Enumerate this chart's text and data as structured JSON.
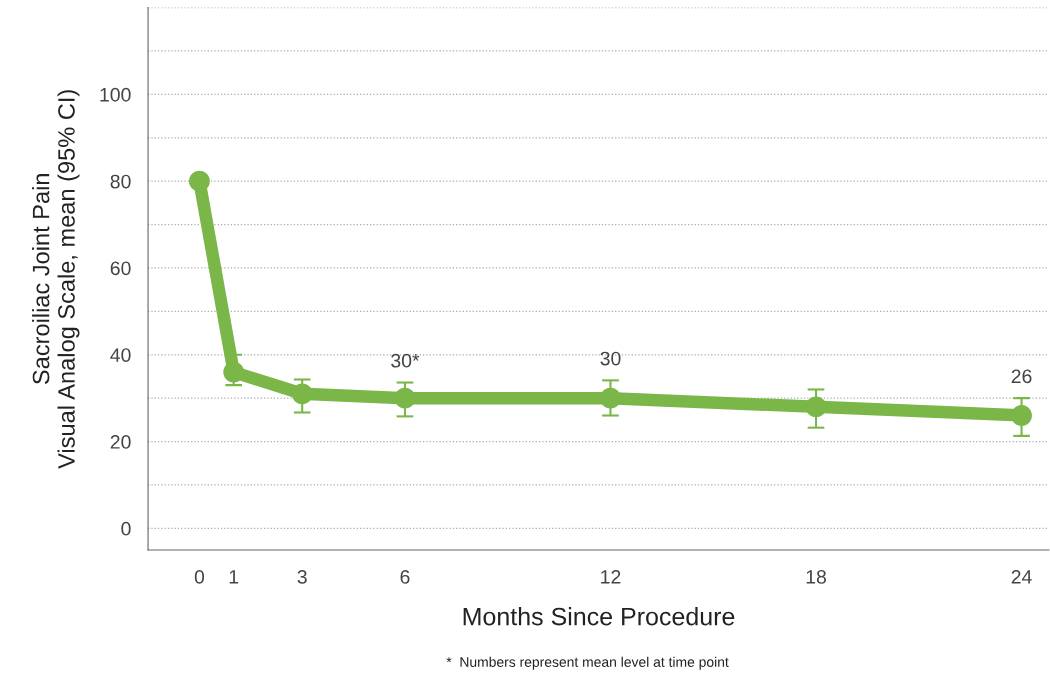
{
  "chart_data": {
    "type": "line",
    "xlabel": "Months Since Procedure",
    "ylabel": "Sacroiliac Joint Pain\nVisual Analog Scale, mean (95% CI)",
    "x": [
      0,
      1,
      3,
      6,
      12,
      18,
      24
    ],
    "series": [
      {
        "color": "#7ab648",
        "values": [
          80,
          36,
          31,
          30,
          30,
          28,
          26
        ],
        "errors": [
          null,
          [
            33,
            40
          ],
          [
            26.7,
            34.3
          ],
          [
            25.8,
            33.6
          ],
          [
            26,
            34.1
          ],
          [
            23.2,
            32
          ],
          [
            21.3,
            30
          ]
        ],
        "value_labels": [
          null,
          null,
          null,
          "30*",
          "30",
          null,
          "26"
        ]
      }
    ],
    "xlim": [
      -1.5,
      24.8
    ],
    "xticks": [
      0,
      1,
      3,
      6,
      12,
      18,
      24
    ],
    "ylim": [
      -5,
      120
    ],
    "yticks": [
      0,
      {
        "value": 10,
        "label": null
      },
      20,
      {
        "value": 30,
        "label": null
      },
      40,
      {
        "value": 50,
        "label": null
      },
      60,
      {
        "value": 70,
        "label": null
      },
      80,
      {
        "value": 90,
        "label": null
      },
      100,
      {
        "value": 110,
        "label": null
      },
      {
        "value": 120,
        "label": null
      }
    ],
    "grid": "y",
    "marker": "circle",
    "line_style": "solid",
    "annotations": [
      "*  Numbers represent mean level at time point"
    ]
  }
}
